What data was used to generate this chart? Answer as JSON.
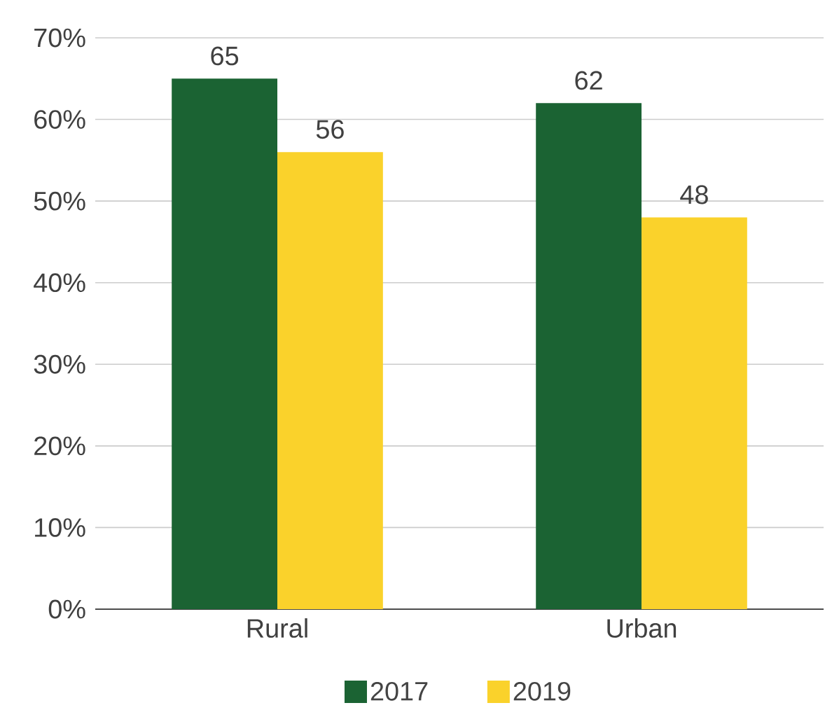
{
  "chart_data": {
    "type": "bar",
    "categories": [
      "Rural",
      "Urban"
    ],
    "series": [
      {
        "name": "2017",
        "color": "#1b6333",
        "values": [
          65,
          62
        ]
      },
      {
        "name": "2019",
        "color": "#fad22b",
        "values": [
          56,
          48
        ]
      }
    ],
    "ylim": [
      0,
      70
    ],
    "yticks": [
      {
        "value": 0,
        "label": "0%"
      },
      {
        "value": 10,
        "label": "10%"
      },
      {
        "value": 20,
        "label": "20%"
      },
      {
        "value": 30,
        "label": "30%"
      },
      {
        "value": 40,
        "label": "40%"
      },
      {
        "value": 50,
        "label": "50%"
      },
      {
        "value": 60,
        "label": "60%"
      },
      {
        "value": 70,
        "label": "70%"
      }
    ],
    "grid": "y",
    "legend": "bottom",
    "data_labels": true
  }
}
